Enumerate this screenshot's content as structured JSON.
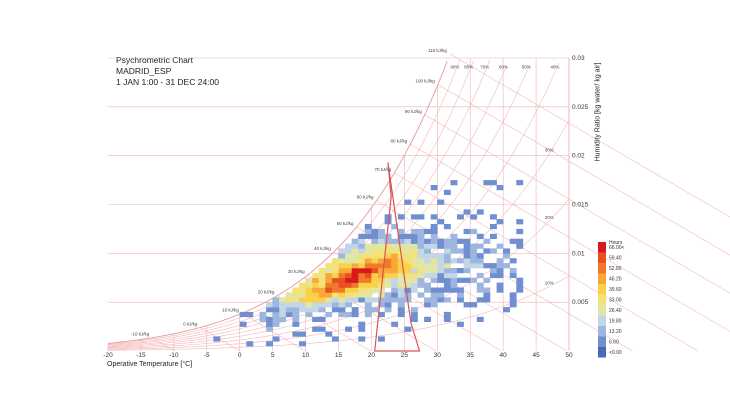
{
  "title_lines": [
    "Psychrometric Chart",
    "MADRID_ESP",
    "1 JAN 1:00 - 31 DEC 24:00"
  ],
  "chart_data": {
    "type": "heatmap",
    "title": "Psychrometric Chart",
    "subtitle": [
      "MADRID_ESP",
      "1 JAN 1:00 - 31 DEC 24:00"
    ],
    "xlabel": "Operative Temperature [°C]",
    "ylabel": "Humidity Ratio [kg water/ kg air]",
    "xlim": [
      -20,
      50
    ],
    "ylim": [
      0,
      0.03
    ],
    "x_ticks": [
      "-20",
      "-15",
      "-10",
      "-5",
      "0",
      "5",
      "10",
      "15",
      "20",
      "25",
      "30",
      "35",
      "40",
      "45",
      "50"
    ],
    "y_ticks": [
      "0.005",
      "0.01",
      "0.015",
      "0.02",
      "0.025",
      "0.03"
    ],
    "enthalpy_labels": [
      "-10 kJ/kg",
      "0 kJ/kg",
      "10 kJ/kg",
      "20 kJ/kg",
      "30 kJ/kg",
      "40 kJ/kg",
      "50 kJ/kg",
      "60 kJ/kg",
      "70 kJ/kg",
      "80 kJ/kg",
      "90 kJ/kg",
      "100 kJ/kg",
      "110 kJ/kg"
    ],
    "rh_labels": [
      "90%",
      "80%",
      "70%",
      "60%",
      "50%",
      "40%",
      "30%",
      "20%",
      "10%"
    ],
    "legend": {
      "title": "Hours",
      "labels": [
        "66.00<",
        "59.40",
        "52.80",
        "46.20",
        "39.60",
        "33.00",
        "26.40",
        "19.80",
        "13.20",
        "6.60",
        "<0.00"
      ],
      "colors": [
        "#d7191c",
        "#e8501f",
        "#f07a2a",
        "#f7a839",
        "#fbd14b",
        "#f3e17a",
        "#dfe6a7",
        "#c2d6e6",
        "#9db6df",
        "#6f8fd0",
        "#4a68b8"
      ],
      "placement": "right"
    },
    "comfort_polygon": [
      [
        22.5,
        0.0193
      ],
      [
        26.0,
        0.0029
      ],
      [
        27.3,
        0.0
      ],
      [
        20.5,
        0.0
      ],
      [
        23.0,
        0.0158
      ]
    ],
    "grid": true
  }
}
